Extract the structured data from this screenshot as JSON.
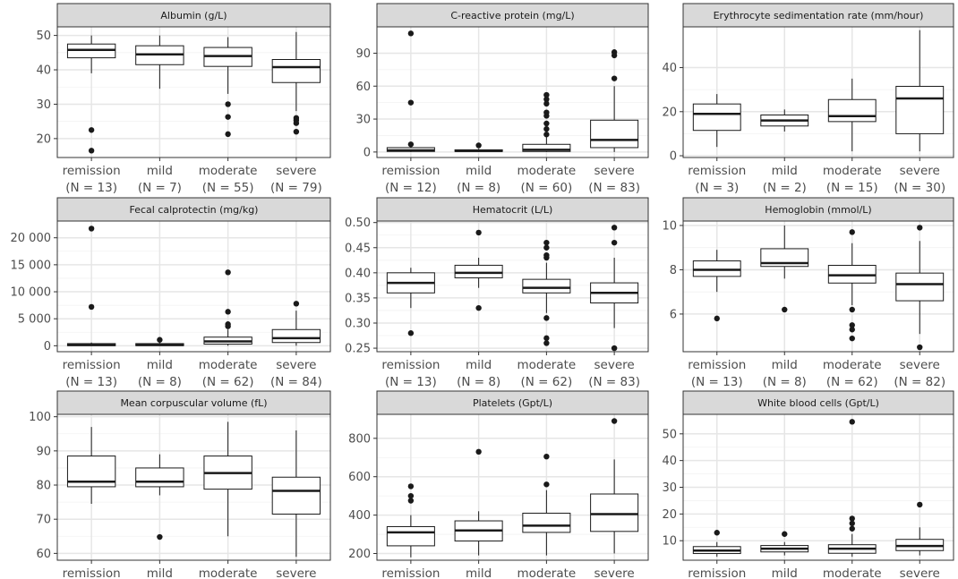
{
  "chart_data": [
    {
      "type": "boxplot",
      "title": "Albumin (g/L)",
      "categories": [
        "remission",
        "mild",
        "moderate",
        "severe"
      ],
      "n_labels": [
        "(N = 13)",
        "(N = 7)",
        "(N = 55)",
        "(N = 79)"
      ],
      "yticks": [
        20,
        30,
        40,
        50
      ],
      "ytick_labels": [
        "20",
        "30",
        "40",
        "50"
      ],
      "ylim": [
        14.5,
        52.5
      ],
      "boxes": [
        {
          "min": 39,
          "q1": 43.5,
          "median": 45.8,
          "q3": 47.5,
          "max": 50,
          "outliers": [
            22.5,
            16.5
          ]
        },
        {
          "min": 34.5,
          "q1": 41.5,
          "median": 44.5,
          "q3": 47,
          "max": 50,
          "outliers": []
        },
        {
          "min": 33,
          "q1": 41,
          "median": 44,
          "q3": 46.5,
          "max": 49.5,
          "outliers": [
            30,
            26.3,
            21.3
          ]
        },
        {
          "min": 28,
          "q1": 36.3,
          "median": 40.8,
          "q3": 43,
          "max": 51,
          "outliers": [
            26,
            25.3,
            24.5,
            22
          ]
        }
      ]
    },
    {
      "type": "boxplot",
      "title": "C-reactive protein (mg/L)",
      "categories": [
        "remission",
        "mild",
        "moderate",
        "severe"
      ],
      "n_labels": [
        "(N = 12)",
        "(N = 8)",
        "(N = 60)",
        "(N = 83)"
      ],
      "yticks": [
        0,
        30,
        60,
        90
      ],
      "ytick_labels": [
        "0",
        "30",
        "60",
        "90"
      ],
      "ylim": [
        -5,
        114
      ],
      "boxes": [
        {
          "min": 0,
          "q1": 0.5,
          "median": 1.5,
          "q3": 4,
          "max": 5,
          "outliers": [
            108,
            45,
            7
          ]
        },
        {
          "min": 0,
          "q1": 0.5,
          "median": 1,
          "q3": 2,
          "max": 3,
          "outliers": [
            6
          ]
        },
        {
          "min": 0,
          "q1": 0.5,
          "median": 2,
          "q3": 7,
          "max": 14,
          "outliers": [
            52,
            48,
            44,
            36,
            33,
            26,
            21,
            16
          ]
        },
        {
          "min": 0,
          "q1": 4,
          "median": 11,
          "q3": 29,
          "max": 60,
          "outliers": [
            91,
            88,
            67
          ]
        }
      ]
    },
    {
      "type": "boxplot",
      "title": "Erythrocyte sedimentation rate (mm/hour)",
      "categories": [
        "remission",
        "mild",
        "moderate",
        "severe"
      ],
      "n_labels": [
        "(N = 3)",
        "(N = 2)",
        "(N = 15)",
        "(N = 30)"
      ],
      "yticks": [
        0,
        20,
        40
      ],
      "ytick_labels": [
        "0",
        "20",
        "40"
      ],
      "ylim": [
        -0.8,
        58.5
      ],
      "boxes": [
        {
          "min": 4,
          "q1": 11.5,
          "median": 19,
          "q3": 23.5,
          "max": 28,
          "outliers": []
        },
        {
          "min": 11,
          "q1": 13.5,
          "median": 16,
          "q3": 18.5,
          "max": 21,
          "outliers": []
        },
        {
          "min": 2,
          "q1": 15.5,
          "median": 18,
          "q3": 25.5,
          "max": 35,
          "outliers": []
        },
        {
          "min": 2,
          "q1": 10,
          "median": 26,
          "q3": 31.5,
          "max": 57,
          "outliers": []
        }
      ]
    },
    {
      "type": "boxplot",
      "title": "Fecal calprotectin (mg/kg)",
      "categories": [
        "remission",
        "mild",
        "moderate",
        "severe"
      ],
      "n_labels": [
        "(N = 13)",
        "(N = 8)",
        "(N = 62)",
        "(N = 84)"
      ],
      "yticks": [
        0,
        5000,
        10000,
        15000,
        20000
      ],
      "ytick_labels": [
        "0",
        "5 000",
        "10 000",
        "15 000",
        "20 000"
      ],
      "ylim": [
        -1100,
        23100
      ],
      "boxes": [
        {
          "min": 0,
          "q1": 20,
          "median": 150,
          "q3": 400,
          "max": 600,
          "outliers": [
            21700,
            7200
          ]
        },
        {
          "min": 0,
          "q1": 30,
          "median": 150,
          "q3": 400,
          "max": 700,
          "outliers": [
            1100
          ]
        },
        {
          "min": 0,
          "q1": 300,
          "median": 800,
          "q3": 1600,
          "max": 3000,
          "outliers": [
            13600,
            6300,
            4000,
            3600
          ]
        },
        {
          "min": 0,
          "q1": 600,
          "median": 1400,
          "q3": 3000,
          "max": 6500,
          "outliers": [
            7800
          ]
        }
      ]
    },
    {
      "type": "boxplot",
      "title": "Hematocrit (L/L)",
      "categories": [
        "remission",
        "mild",
        "moderate",
        "severe"
      ],
      "n_labels": [
        "(N = 13)",
        "(N = 8)",
        "(N = 62)",
        "(N = 83)"
      ],
      "yticks": [
        0.25,
        0.3,
        0.35,
        0.4,
        0.45,
        0.5
      ],
      "ytick_labels": [
        "0.25",
        "0.30",
        "0.35",
        "0.40",
        "0.45",
        "0.50"
      ],
      "ylim": [
        0.243,
        0.503
      ],
      "boxes": [
        {
          "min": 0.33,
          "q1": 0.36,
          "median": 0.38,
          "q3": 0.4,
          "max": 0.41,
          "outliers": [
            0.28
          ]
        },
        {
          "min": 0.37,
          "q1": 0.39,
          "median": 0.4,
          "q3": 0.415,
          "max": 0.43,
          "outliers": [
            0.48,
            0.33
          ]
        },
        {
          "min": 0.32,
          "q1": 0.36,
          "median": 0.37,
          "q3": 0.387,
          "max": 0.42,
          "outliers": [
            0.46,
            0.45,
            0.435,
            0.43,
            0.31,
            0.27,
            0.26
          ]
        },
        {
          "min": 0.29,
          "q1": 0.34,
          "median": 0.36,
          "q3": 0.38,
          "max": 0.43,
          "outliers": [
            0.49,
            0.46,
            0.25
          ]
        }
      ]
    },
    {
      "type": "boxplot",
      "title": "Hemoglobin (mmol/L)",
      "categories": [
        "remission",
        "mild",
        "moderate",
        "severe"
      ],
      "n_labels": [
        "(N = 13)",
        "(N = 8)",
        "(N = 62)",
        "(N = 82)"
      ],
      "yticks": [
        6,
        8,
        10
      ],
      "ytick_labels": [
        "6",
        "8",
        "10"
      ],
      "ylim": [
        4.3,
        10.2
      ],
      "boxes": [
        {
          "min": 7,
          "q1": 7.7,
          "median": 8.0,
          "q3": 8.4,
          "max": 8.9,
          "outliers": [
            5.8
          ]
        },
        {
          "min": 7.6,
          "q1": 8.15,
          "median": 8.3,
          "q3": 8.95,
          "max": 10,
          "outliers": [
            6.2
          ]
        },
        {
          "min": 6.4,
          "q1": 7.4,
          "median": 7.75,
          "q3": 8.2,
          "max": 9.2,
          "outliers": [
            9.7,
            6.2,
            5.5,
            5.3,
            4.9
          ]
        },
        {
          "min": 5.1,
          "q1": 6.6,
          "median": 7.35,
          "q3": 7.85,
          "max": 9.3,
          "outliers": [
            9.9,
            4.5
          ]
        }
      ]
    },
    {
      "type": "boxplot",
      "title": "Mean corpuscular volume (fL)",
      "categories": [
        "remission",
        "mild",
        "moderate",
        "severe"
      ],
      "n_labels": [
        "(N = 13)",
        "(N = 8)",
        "(N = 62)",
        "(N = 80)"
      ],
      "yticks": [
        60,
        70,
        80,
        90,
        100
      ],
      "ytick_labels": [
        "60",
        "70",
        "80",
        "90",
        "100"
      ],
      "ylim": [
        58,
        100.7
      ],
      "boxes": [
        {
          "min": 74.5,
          "q1": 79.5,
          "median": 81,
          "q3": 88.5,
          "max": 97,
          "outliers": []
        },
        {
          "min": 77,
          "q1": 79.5,
          "median": 81,
          "q3": 85,
          "max": 89,
          "outliers": [
            64.8
          ]
        },
        {
          "min": 65,
          "q1": 78.8,
          "median": 83.5,
          "q3": 88.5,
          "max": 98.5,
          "outliers": []
        },
        {
          "min": 59,
          "q1": 71.5,
          "median": 78.3,
          "q3": 82.3,
          "max": 96,
          "outliers": []
        }
      ]
    },
    {
      "type": "boxplot",
      "title": "Platelets (Gpt/L)",
      "categories": [
        "remission",
        "mild",
        "moderate",
        "severe"
      ],
      "n_labels": [
        "(N = 13)",
        "(N = 8)",
        "(N = 62)",
        "(N = 82)"
      ],
      "yticks": [
        200,
        400,
        600,
        800
      ],
      "ytick_labels": [
        "200",
        "400",
        "600",
        "800"
      ],
      "ylim": [
        165,
        925
      ],
      "boxes": [
        {
          "min": 180,
          "q1": 240,
          "median": 310,
          "q3": 340,
          "max": 400,
          "outliers": [
            550,
            500,
            475
          ]
        },
        {
          "min": 190,
          "q1": 265,
          "median": 320,
          "q3": 370,
          "max": 420,
          "outliers": [
            730
          ]
        },
        {
          "min": 190,
          "q1": 310,
          "median": 345,
          "q3": 410,
          "max": 530,
          "outliers": [
            705,
            560
          ]
        },
        {
          "min": 200,
          "q1": 315,
          "median": 405,
          "q3": 510,
          "max": 690,
          "outliers": [
            890
          ]
        }
      ]
    },
    {
      "type": "boxplot",
      "title": "White blood cells (Gpt/L)",
      "categories": [
        "remission",
        "mild",
        "moderate",
        "severe"
      ],
      "n_labels": [
        "(N = 13)",
        "(N = 8)",
        "(N = 62)",
        "(N = 82)"
      ],
      "yticks": [
        10,
        20,
        30,
        40,
        50
      ],
      "ytick_labels": [
        "10",
        "20",
        "30",
        "40",
        "50"
      ],
      "ylim": [
        2.7,
        57.3
      ],
      "boxes": [
        {
          "min": 4,
          "q1": 5.2,
          "median": 6.3,
          "q3": 7.8,
          "max": 9.5,
          "outliers": [
            13
          ]
        },
        {
          "min": 4.5,
          "q1": 5.8,
          "median": 7,
          "q3": 8.2,
          "max": 9.5,
          "outliers": [
            12.5
          ]
        },
        {
          "min": 4,
          "q1": 5.3,
          "median": 7,
          "q3": 8.5,
          "max": 12.5,
          "outliers": [
            54.5,
            18.3,
            16.5,
            14.5
          ]
        },
        {
          "min": 4.5,
          "q1": 6.3,
          "median": 8,
          "q3": 10.5,
          "max": 15,
          "outliers": [
            23.5
          ]
        }
      ]
    }
  ]
}
